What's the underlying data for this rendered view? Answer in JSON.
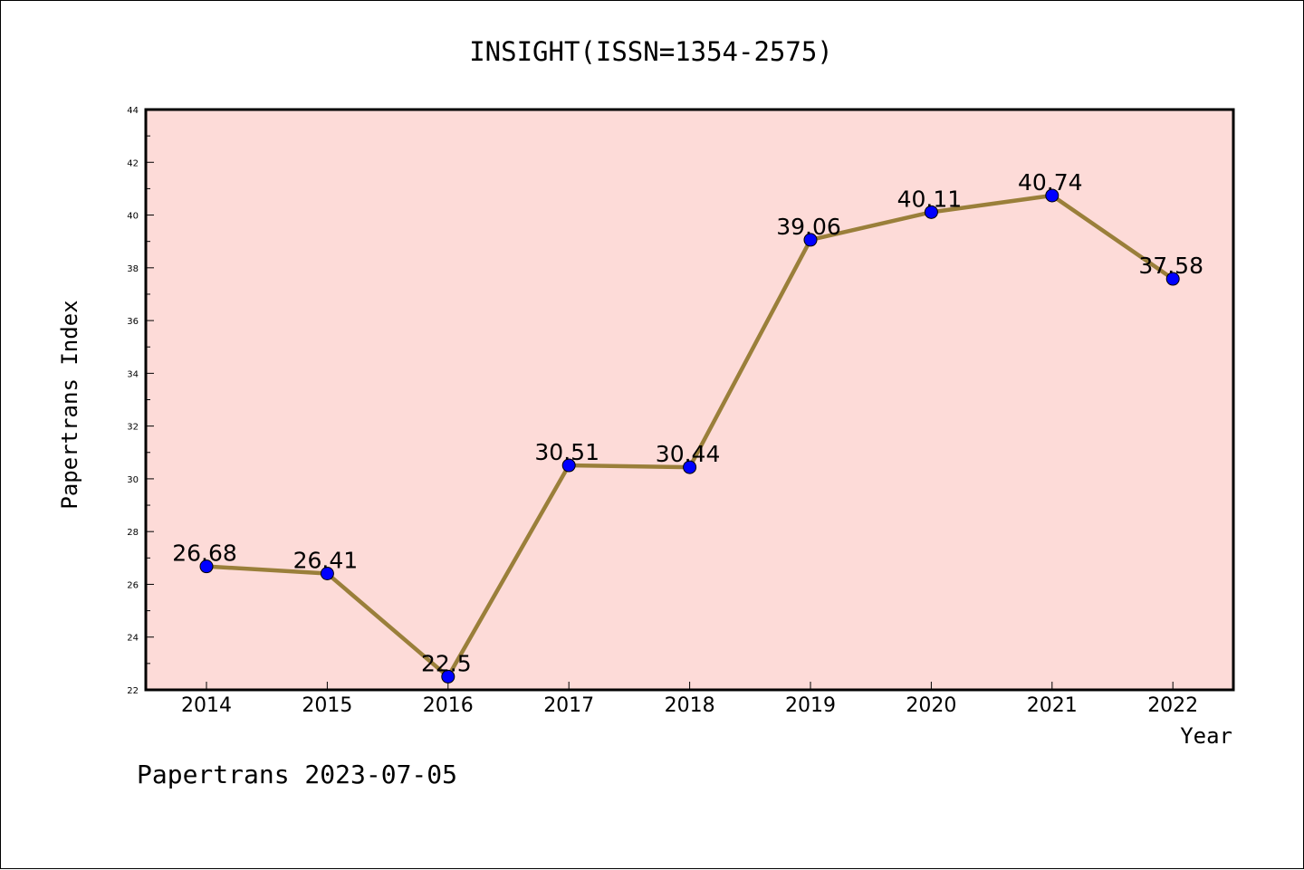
{
  "chart_data": {
    "type": "line",
    "title": "INSIGHT(ISSN=1354-2575)",
    "xlabel": "Year",
    "ylabel": "Papertrans Index",
    "categories": [
      "2014",
      "2015",
      "2016",
      "2017",
      "2018",
      "2019",
      "2020",
      "2021",
      "2022"
    ],
    "values": [
      26.68,
      26.41,
      22.5,
      30.51,
      30.44,
      39.06,
      40.11,
      40.74,
      37.58
    ],
    "data_labels": [
      "26.68",
      "26.41",
      "22.5",
      "30.51",
      "30.44",
      "39.06",
      "40.11",
      "40.74",
      "37.58"
    ],
    "ylim": [
      22,
      44
    ],
    "yticks": [
      "22",
      "24",
      "26",
      "28",
      "30",
      "32",
      "34",
      "36",
      "38",
      "40",
      "42",
      "44"
    ],
    "grid": false,
    "legend": "none",
    "colors": {
      "plot_background": "#fddbd8",
      "line": "#9a7f3a",
      "marker": "#0000ff"
    }
  },
  "footer": "Papertrans 2023-07-05"
}
